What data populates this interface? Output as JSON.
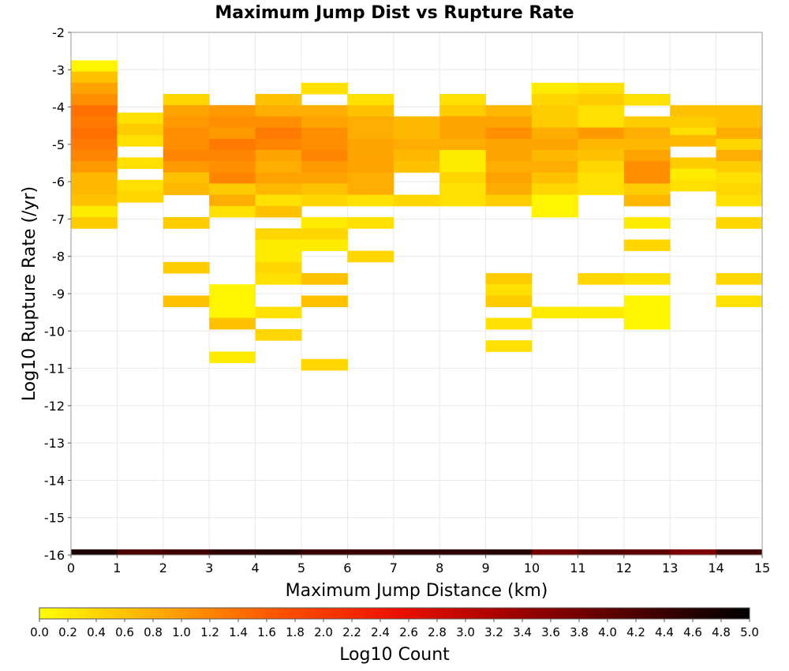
{
  "chart_data": {
    "type": "heatmap",
    "title": "Maximum Jump Dist vs Rupture Rate",
    "xlabel": "Maximum Jump Distance (km)",
    "ylabel": "Log10 Rupture Rate (/yr)",
    "xlim": [
      0,
      15
    ],
    "ylim": [
      -16,
      -2
    ],
    "xticks": [
      "0",
      "1",
      "2",
      "3",
      "4",
      "5",
      "6",
      "7",
      "8",
      "9",
      "10",
      "11",
      "12",
      "13",
      "14",
      "15"
    ],
    "yticks": [
      "-2",
      "-3",
      "-4",
      "-5",
      "-6",
      "-7",
      "-8",
      "-9",
      "-10",
      "-11",
      "-12",
      "-13",
      "-14",
      "-15",
      "-16"
    ],
    "grid": true,
    "bin_width": 1,
    "bin_height": 0.3,
    "colorbar": {
      "label": "Log10 Count",
      "min": 0,
      "max": 5,
      "ticks": [
        "0.0",
        "0.2",
        "0.4",
        "0.6",
        "0.8",
        "1.0",
        "1.2",
        "1.4",
        "1.6",
        "1.8",
        "2.0",
        "2.2",
        "2.4",
        "2.6",
        "2.8",
        "3.0",
        "3.2",
        "3.4",
        "3.6",
        "3.8",
        "4.0",
        "4.2",
        "4.4",
        "4.6",
        "4.8",
        "5.0"
      ],
      "colors": [
        "#ffff00",
        "#ffaa00",
        "#ff5500",
        "#ee1100",
        "#a00000",
        "#500000",
        "#000000"
      ]
    },
    "bins": [
      {
        "x": 0,
        "y": -2.9,
        "v": 0.1
      },
      {
        "x": 0,
        "y": -3.2,
        "v": 0.6
      },
      {
        "x": 0,
        "y": -3.5,
        "v": 0.9
      },
      {
        "x": 0,
        "y": -3.8,
        "v": 1.1
      },
      {
        "x": 0,
        "y": -4.1,
        "v": 1.4
      },
      {
        "x": 0,
        "y": -4.4,
        "v": 1.3
      },
      {
        "x": 0,
        "y": -4.7,
        "v": 1.4
      },
      {
        "x": 0,
        "y": -5.0,
        "v": 1.3
      },
      {
        "x": 0,
        "y": -5.3,
        "v": 1.2
      },
      {
        "x": 0,
        "y": -5.6,
        "v": 1.0
      },
      {
        "x": 0,
        "y": -5.9,
        "v": 0.7
      },
      {
        "x": 0,
        "y": -6.2,
        "v": 0.7
      },
      {
        "x": 0,
        "y": -6.5,
        "v": 0.6
      },
      {
        "x": 0,
        "y": -6.8,
        "v": 0.2
      },
      {
        "x": 0,
        "y": -7.1,
        "v": 0.5
      },
      {
        "x": 1,
        "y": -4.3,
        "v": 0.3
      },
      {
        "x": 1,
        "y": -4.6,
        "v": 0.5
      },
      {
        "x": 1,
        "y": -4.9,
        "v": 0.3
      },
      {
        "x": 1,
        "y": -5.5,
        "v": 0.3
      },
      {
        "x": 1,
        "y": -6.1,
        "v": 0.3
      },
      {
        "x": 1,
        "y": -6.4,
        "v": 0.4
      },
      {
        "x": 2,
        "y": -3.8,
        "v": 0.4
      },
      {
        "x": 2,
        "y": -4.1,
        "v": 0.9
      },
      {
        "x": 2,
        "y": -4.4,
        "v": 1.0
      },
      {
        "x": 2,
        "y": -4.7,
        "v": 1.1
      },
      {
        "x": 2,
        "y": -5.0,
        "v": 1.1
      },
      {
        "x": 2,
        "y": -5.3,
        "v": 1.2
      },
      {
        "x": 2,
        "y": -5.6,
        "v": 1.0
      },
      {
        "x": 2,
        "y": -5.9,
        "v": 0.6
      },
      {
        "x": 2,
        "y": -6.2,
        "v": 0.7
      },
      {
        "x": 2,
        "y": -7.1,
        "v": 0.5
      },
      {
        "x": 2,
        "y": -8.3,
        "v": 0.5
      },
      {
        "x": 2,
        "y": -9.2,
        "v": 0.6
      },
      {
        "x": 3,
        "y": -4.1,
        "v": 1.0
      },
      {
        "x": 3,
        "y": -4.4,
        "v": 1.1
      },
      {
        "x": 3,
        "y": -4.7,
        "v": 1.0
      },
      {
        "x": 3,
        "y": -5.0,
        "v": 1.3
      },
      {
        "x": 3,
        "y": -5.3,
        "v": 1.2
      },
      {
        "x": 3,
        "y": -5.6,
        "v": 1.1
      },
      {
        "x": 3,
        "y": -5.9,
        "v": 1.2
      },
      {
        "x": 3,
        "y": -6.2,
        "v": 0.5
      },
      {
        "x": 3,
        "y": -6.5,
        "v": 0.8
      },
      {
        "x": 3,
        "y": -6.8,
        "v": 0.3
      },
      {
        "x": 3,
        "y": -8.9,
        "v": 0.1
      },
      {
        "x": 3,
        "y": -9.2,
        "v": 0.1
      },
      {
        "x": 3,
        "y": -9.5,
        "v": 0.1
      },
      {
        "x": 3,
        "y": -9.8,
        "v": 0.6
      },
      {
        "x": 3,
        "y": -10.7,
        "v": 0.2
      },
      {
        "x": 4,
        "y": -3.8,
        "v": 0.6
      },
      {
        "x": 4,
        "y": -4.1,
        "v": 0.8
      },
      {
        "x": 4,
        "y": -4.4,
        "v": 1.1
      },
      {
        "x": 4,
        "y": -4.7,
        "v": 1.3
      },
      {
        "x": 4,
        "y": -5.0,
        "v": 1.2
      },
      {
        "x": 4,
        "y": -5.3,
        "v": 0.9
      },
      {
        "x": 4,
        "y": -5.6,
        "v": 0.8
      },
      {
        "x": 4,
        "y": -5.9,
        "v": 0.9
      },
      {
        "x": 4,
        "y": -6.2,
        "v": 0.7
      },
      {
        "x": 4,
        "y": -6.5,
        "v": 0.3
      },
      {
        "x": 4,
        "y": -6.8,
        "v": 0.6
      },
      {
        "x": 4,
        "y": -7.4,
        "v": 0.4
      },
      {
        "x": 4,
        "y": -7.7,
        "v": 0.2
      },
      {
        "x": 4,
        "y": -8.0,
        "v": 0.2
      },
      {
        "x": 4,
        "y": -8.3,
        "v": 0.4
      },
      {
        "x": 4,
        "y": -8.6,
        "v": 0.3
      },
      {
        "x": 4,
        "y": -9.5,
        "v": 0.3
      },
      {
        "x": 4,
        "y": -10.1,
        "v": 0.4
      },
      {
        "x": 5,
        "y": -3.5,
        "v": 0.3
      },
      {
        "x": 5,
        "y": -4.1,
        "v": 0.8
      },
      {
        "x": 5,
        "y": -4.4,
        "v": 0.9
      },
      {
        "x": 5,
        "y": -4.7,
        "v": 1.1
      },
      {
        "x": 5,
        "y": -5.0,
        "v": 1.1
      },
      {
        "x": 5,
        "y": -5.3,
        "v": 1.2
      },
      {
        "x": 5,
        "y": -5.6,
        "v": 1.0
      },
      {
        "x": 5,
        "y": -5.9,
        "v": 0.9
      },
      {
        "x": 5,
        "y": -6.2,
        "v": 0.6
      },
      {
        "x": 5,
        "y": -6.5,
        "v": 0.4
      },
      {
        "x": 5,
        "y": -7.1,
        "v": 0.2
      },
      {
        "x": 5,
        "y": -7.4,
        "v": 0.4
      },
      {
        "x": 5,
        "y": -7.7,
        "v": 0.2
      },
      {
        "x": 5,
        "y": -8.6,
        "v": 0.6
      },
      {
        "x": 5,
        "y": -9.2,
        "v": 0.6
      },
      {
        "x": 5,
        "y": -10.9,
        "v": 0.4
      },
      {
        "x": 6,
        "y": -3.8,
        "v": 0.3
      },
      {
        "x": 6,
        "y": -4.1,
        "v": 0.6
      },
      {
        "x": 6,
        "y": -4.4,
        "v": 0.8
      },
      {
        "x": 6,
        "y": -4.7,
        "v": 0.8
      },
      {
        "x": 6,
        "y": -5.0,
        "v": 0.9
      },
      {
        "x": 6,
        "y": -5.3,
        "v": 0.9
      },
      {
        "x": 6,
        "y": -5.6,
        "v": 0.9
      },
      {
        "x": 6,
        "y": -5.9,
        "v": 0.8
      },
      {
        "x": 6,
        "y": -6.2,
        "v": 0.8
      },
      {
        "x": 6,
        "y": -6.5,
        "v": 0.3
      },
      {
        "x": 6,
        "y": -7.1,
        "v": 0.3
      },
      {
        "x": 6,
        "y": -8.0,
        "v": 0.4
      },
      {
        "x": 7,
        "y": -4.4,
        "v": 0.7
      },
      {
        "x": 7,
        "y": -4.7,
        "v": 0.7
      },
      {
        "x": 7,
        "y": -5.0,
        "v": 0.8
      },
      {
        "x": 7,
        "y": -5.3,
        "v": 0.7
      },
      {
        "x": 7,
        "y": -5.6,
        "v": 0.6
      },
      {
        "x": 7,
        "y": -6.5,
        "v": 0.4
      },
      {
        "x": 8,
        "y": -3.8,
        "v": 0.3
      },
      {
        "x": 8,
        "y": -4.1,
        "v": 0.5
      },
      {
        "x": 8,
        "y": -4.4,
        "v": 0.9
      },
      {
        "x": 8,
        "y": -4.7,
        "v": 0.9
      },
      {
        "x": 8,
        "y": -5.0,
        "v": 0.8
      },
      {
        "x": 8,
        "y": -5.3,
        "v": 0.2
      },
      {
        "x": 8,
        "y": -5.6,
        "v": 0.2
      },
      {
        "x": 8,
        "y": -5.9,
        "v": 0.4
      },
      {
        "x": 8,
        "y": -6.2,
        "v": 0.3
      },
      {
        "x": 8,
        "y": -6.5,
        "v": 0.3
      },
      {
        "x": 9,
        "y": -4.1,
        "v": 0.7
      },
      {
        "x": 9,
        "y": -4.4,
        "v": 0.9
      },
      {
        "x": 9,
        "y": -4.7,
        "v": 1.1
      },
      {
        "x": 9,
        "y": -5.0,
        "v": 0.9
      },
      {
        "x": 9,
        "y": -5.3,
        "v": 0.9
      },
      {
        "x": 9,
        "y": -5.6,
        "v": 0.8
      },
      {
        "x": 9,
        "y": -5.9,
        "v": 0.9
      },
      {
        "x": 9,
        "y": -6.2,
        "v": 0.8
      },
      {
        "x": 9,
        "y": -6.5,
        "v": 0.5
      },
      {
        "x": 9,
        "y": -8.6,
        "v": 0.5
      },
      {
        "x": 9,
        "y": -8.9,
        "v": 0.3
      },
      {
        "x": 9,
        "y": -9.2,
        "v": 0.5
      },
      {
        "x": 9,
        "y": -9.8,
        "v": 0.3
      },
      {
        "x": 9,
        "y": -10.4,
        "v": 0.3
      },
      {
        "x": 10,
        "y": -3.5,
        "v": 0.2
      },
      {
        "x": 10,
        "y": -3.8,
        "v": 0.4
      },
      {
        "x": 10,
        "y": -4.1,
        "v": 0.5
      },
      {
        "x": 10,
        "y": -4.4,
        "v": 0.5
      },
      {
        "x": 10,
        "y": -4.7,
        "v": 0.8
      },
      {
        "x": 10,
        "y": -5.0,
        "v": 0.9
      },
      {
        "x": 10,
        "y": -5.3,
        "v": 0.7
      },
      {
        "x": 10,
        "y": -5.6,
        "v": 0.8
      },
      {
        "x": 10,
        "y": -5.9,
        "v": 0.6
      },
      {
        "x": 10,
        "y": -6.2,
        "v": 0.4
      },
      {
        "x": 10,
        "y": -6.5,
        "v": 0.1
      },
      {
        "x": 10,
        "y": -6.8,
        "v": 0.1
      },
      {
        "x": 10,
        "y": -9.5,
        "v": 0.2
      },
      {
        "x": 11,
        "y": -3.5,
        "v": 0.3
      },
      {
        "x": 11,
        "y": -3.8,
        "v": 0.5
      },
      {
        "x": 11,
        "y": -4.1,
        "v": 0.3
      },
      {
        "x": 11,
        "y": -4.4,
        "v": 0.3
      },
      {
        "x": 11,
        "y": -4.7,
        "v": 1.0
      },
      {
        "x": 11,
        "y": -5.0,
        "v": 0.7
      },
      {
        "x": 11,
        "y": -5.3,
        "v": 0.6
      },
      {
        "x": 11,
        "y": -5.6,
        "v": 0.4
      },
      {
        "x": 11,
        "y": -5.9,
        "v": 0.3
      },
      {
        "x": 11,
        "y": -6.2,
        "v": 0.3
      },
      {
        "x": 11,
        "y": -8.6,
        "v": 0.4
      },
      {
        "x": 11,
        "y": -9.5,
        "v": 0.2
      },
      {
        "x": 12,
        "y": -3.8,
        "v": 0.3
      },
      {
        "x": 12,
        "y": -4.4,
        "v": 0.5
      },
      {
        "x": 12,
        "y": -4.7,
        "v": 0.8
      },
      {
        "x": 12,
        "y": -5.0,
        "v": 0.7
      },
      {
        "x": 12,
        "y": -5.3,
        "v": 0.9
      },
      {
        "x": 12,
        "y": -5.6,
        "v": 1.1
      },
      {
        "x": 12,
        "y": -5.9,
        "v": 1.1
      },
      {
        "x": 12,
        "y": -6.2,
        "v": 0.5
      },
      {
        "x": 12,
        "y": -6.5,
        "v": 0.7
      },
      {
        "x": 12,
        "y": -7.1,
        "v": 0.2
      },
      {
        "x": 12,
        "y": -7.7,
        "v": 0.4
      },
      {
        "x": 12,
        "y": -8.6,
        "v": 0.3
      },
      {
        "x": 12,
        "y": -9.2,
        "v": 0.1
      },
      {
        "x": 12,
        "y": -9.5,
        "v": 0.1
      },
      {
        "x": 12,
        "y": -9.8,
        "v": 0.1
      },
      {
        "x": 13,
        "y": -4.1,
        "v": 0.6
      },
      {
        "x": 13,
        "y": -4.4,
        "v": 0.5
      },
      {
        "x": 13,
        "y": -4.7,
        "v": 0.3
      },
      {
        "x": 13,
        "y": -4.9,
        "v": 0.7
      },
      {
        "x": 13,
        "y": -5.5,
        "v": 0.5
      },
      {
        "x": 13,
        "y": -5.8,
        "v": 0.2
      },
      {
        "x": 13,
        "y": -6.1,
        "v": 0.3
      },
      {
        "x": 14,
        "y": -4.1,
        "v": 0.6
      },
      {
        "x": 14,
        "y": -4.4,
        "v": 0.6
      },
      {
        "x": 14,
        "y": -4.7,
        "v": 0.8
      },
      {
        "x": 14,
        "y": -5.0,
        "v": 0.4
      },
      {
        "x": 14,
        "y": -5.3,
        "v": 0.8
      },
      {
        "x": 14,
        "y": -5.6,
        "v": 0.5
      },
      {
        "x": 14,
        "y": -5.9,
        "v": 0.3
      },
      {
        "x": 14,
        "y": -6.2,
        "v": 0.4
      },
      {
        "x": 14,
        "y": -6.5,
        "v": 0.3
      },
      {
        "x": 14,
        "y": -7.1,
        "v": 0.4
      },
      {
        "x": 14,
        "y": -8.6,
        "v": 0.4
      },
      {
        "x": 14,
        "y": -9.2,
        "v": 0.3
      },
      {
        "x": 0,
        "y": -16.0,
        "v": 4.7
      },
      {
        "x": 1,
        "y": -16.0,
        "v": 4.2
      },
      {
        "x": 2,
        "y": -16.0,
        "v": 4.3
      },
      {
        "x": 3,
        "y": -16.0,
        "v": 4.5
      },
      {
        "x": 4,
        "y": -16.0,
        "v": 4.6
      },
      {
        "x": 5,
        "y": -16.0,
        "v": 4.4
      },
      {
        "x": 6,
        "y": -16.0,
        "v": 4.4
      },
      {
        "x": 7,
        "y": -16.0,
        "v": 4.5
      },
      {
        "x": 8,
        "y": -16.0,
        "v": 4.5
      },
      {
        "x": 9,
        "y": -16.0,
        "v": 4.6
      },
      {
        "x": 10,
        "y": -16.0,
        "v": 3.8
      },
      {
        "x": 11,
        "y": -16.0,
        "v": 4.1
      },
      {
        "x": 12,
        "y": -16.0,
        "v": 4.0
      },
      {
        "x": 13,
        "y": -16.0,
        "v": 3.7
      },
      {
        "x": 14,
        "y": -16.0,
        "v": 4.3
      }
    ]
  }
}
